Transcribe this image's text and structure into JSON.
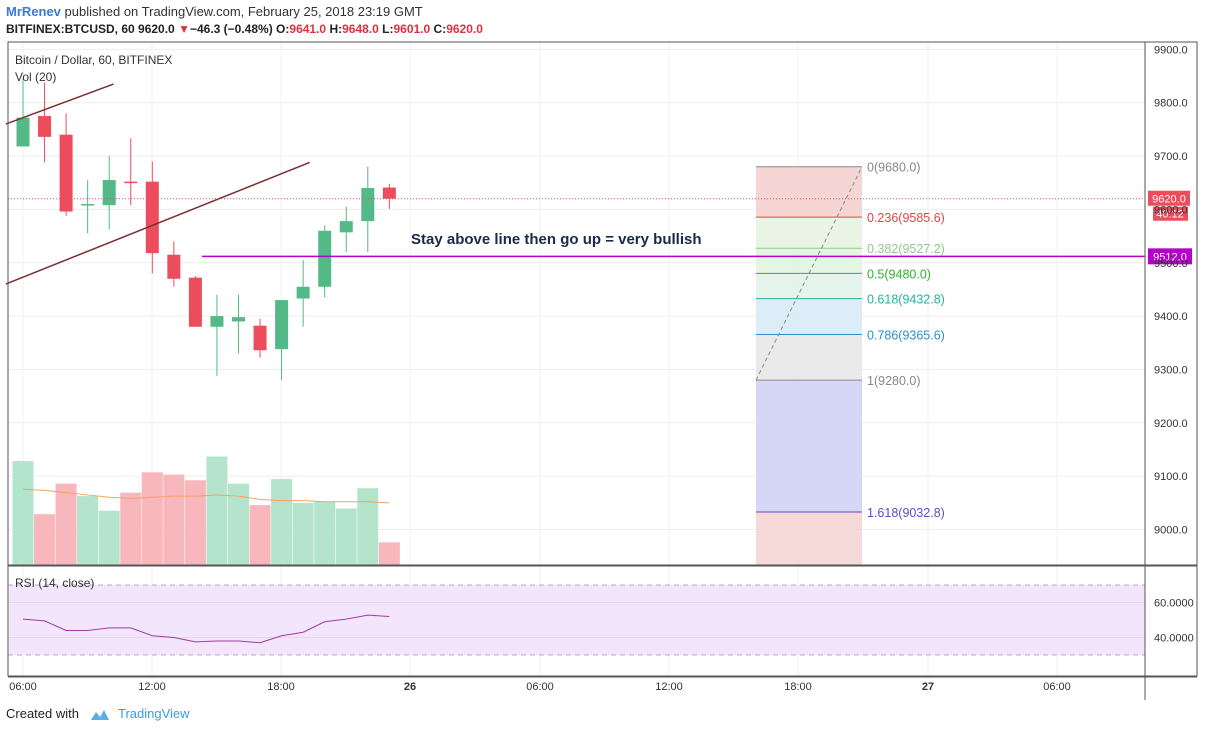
{
  "header": {
    "author": "MrRenev",
    "published": "published on TradingView.com, February 25, 2018 23:19 GMT",
    "symbol": "BITFINEX:BTCUSD, 60",
    "last": "9620.0",
    "change": "−46.3 (−0.48%)",
    "open_label": "O:",
    "open": "9641.0",
    "high_label": "H:",
    "high": "9648.0",
    "low_label": "L:",
    "low": "9601.0",
    "close_label": "C:",
    "close": "9620.0"
  },
  "legend": {
    "title": "Bitcoin / Dollar, 60, BITFINEX",
    "volume": "Vol (20)",
    "rsi": "RSI (14, close)"
  },
  "footer": {
    "created_with": "Created with",
    "brand": "TradingView"
  },
  "colors": {
    "up": "#53b987",
    "down": "#eb4d5c",
    "vol_up": "#b5e4cc",
    "vol_down": "#f7b7bc",
    "ma": "#f6a35c",
    "trend": "#7b2e2e",
    "hline": "#b400c8",
    "rsi_line": "#a03c9e",
    "rsi_band": "#f3e5fb"
  },
  "chart_data": [
    {
      "type": "candlestick",
      "title": "Bitcoin / Dollar, 60, BITFINEX",
      "x_ticks": [
        "06:00",
        "12:00",
        "18:00",
        "26",
        "06:00",
        "12:00",
        "18:00",
        "27",
        "06:00"
      ],
      "y_ticks": [
        9000,
        9100,
        9200,
        9300,
        9400,
        9500,
        9600,
        9700,
        9800,
        9900
      ],
      "y_tick_labels": [
        "9000.0",
        "9100.0",
        "9200.0",
        "9300.0",
        "9400.0",
        "9500.0",
        "9600.0",
        "9700.0",
        "9800.0",
        "9900.0"
      ],
      "ylim": [
        8935,
        9935
      ],
      "candles": [
        {
          "o": 9718,
          "h": 9845,
          "l": 9718,
          "c": 9772
        },
        {
          "o": 9775,
          "h": 9838,
          "l": 9688,
          "c": 9736
        },
        {
          "o": 9740,
          "h": 9780,
          "l": 9588,
          "c": 9596
        },
        {
          "o": 9608,
          "h": 9655,
          "l": 9555,
          "c": 9610
        },
        {
          "o": 9608,
          "h": 9700,
          "l": 9562,
          "c": 9655
        },
        {
          "o": 9652,
          "h": 9733,
          "l": 9608,
          "c": 9650
        },
        {
          "o": 9652,
          "h": 9690,
          "l": 9480,
          "c": 9518
        },
        {
          "o": 9515,
          "h": 9540,
          "l": 9455,
          "c": 9470
        },
        {
          "o": 9472,
          "h": 9475,
          "l": 9380,
          "c": 9380
        },
        {
          "o": 9380,
          "h": 9440,
          "l": 9288,
          "c": 9400
        },
        {
          "o": 9390,
          "h": 9440,
          "l": 9330,
          "c": 9398
        },
        {
          "o": 9382,
          "h": 9395,
          "l": 9322,
          "c": 9336
        },
        {
          "o": 9338,
          "h": 9430,
          "l": 9280,
          "c": 9430
        },
        {
          "o": 9433,
          "h": 9505,
          "l": 9380,
          "c": 9455
        },
        {
          "o": 9455,
          "h": 9570,
          "l": 9435,
          "c": 9560
        },
        {
          "o": 9557,
          "h": 9605,
          "l": 9520,
          "c": 9578
        },
        {
          "o": 9578,
          "h": 9680,
          "l": 9520,
          "c": 9640
        },
        {
          "o": 9641,
          "h": 9648,
          "l": 9601,
          "c": 9620
        }
      ],
      "volume": [
        92,
        45,
        72,
        61,
        48,
        64,
        82,
        80,
        75,
        96,
        72,
        53,
        76,
        55,
        56,
        50,
        68,
        20
      ],
      "volume_ma": [
        67,
        66,
        64,
        62,
        60,
        59,
        60,
        61,
        61,
        62,
        61,
        58,
        57,
        57,
        56,
        56,
        56,
        55
      ],
      "trendlines": [
        {
          "from": [
            -0.8,
            9460
          ],
          "to": [
            13.3,
            9688
          ]
        },
        {
          "from": [
            -0.8,
            9760
          ],
          "to": [
            4.2,
            9835
          ]
        }
      ],
      "horizontal_line": {
        "value": 9512,
        "label": "9512.0",
        "from_index": 8.3
      },
      "annotation": "Stay above line then go up = very bullish",
      "price_label": {
        "value": 9620,
        "label": "9620.0",
        "countdown": "40:12"
      }
    },
    {
      "type": "fibonacci_retracement",
      "levels": [
        {
          "ratio": "0",
          "value": 9680.0,
          "label": "0(9680.0)",
          "color": "#888888"
        },
        {
          "ratio": "0.236",
          "value": 9585.6,
          "label": "0.236(9585.6)",
          "color": "#e64545"
        },
        {
          "ratio": "0.382",
          "value": 9527.2,
          "label": "0.382(9527.2)",
          "color": "#8fc98f"
        },
        {
          "ratio": "0.5",
          "value": 9480.0,
          "label": "0.5(9480.0)",
          "color": "#2cb52c"
        },
        {
          "ratio": "0.618",
          "value": 9432.8,
          "label": "0.618(9432.8)",
          "color": "#22b3a0"
        },
        {
          "ratio": "0.786",
          "value": 9365.6,
          "label": "0.786(9365.6)",
          "color": "#2d8fc7"
        },
        {
          "ratio": "1",
          "value": 9280.0,
          "label": "1(9280.0)",
          "color": "#888888"
        },
        {
          "ratio": "1.618",
          "value": 9032.8,
          "label": "1.618(9032.8)",
          "color": "#5a4fc9"
        }
      ]
    },
    {
      "type": "line",
      "title": "RSI (14, close)",
      "y_ticks": [
        40,
        60
      ],
      "y_tick_labels": [
        "40.0000",
        "60.0000"
      ],
      "ylim": [
        30,
        70
      ],
      "bands": [
        30,
        70
      ],
      "values": [
        50.5,
        49.5,
        44,
        44,
        45.5,
        45.5,
        41,
        40,
        37.5,
        38,
        38,
        37,
        41,
        43,
        49,
        50.5,
        52.8,
        52
      ]
    }
  ]
}
